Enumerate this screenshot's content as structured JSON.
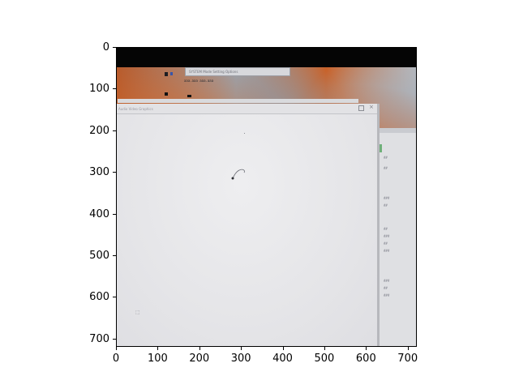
{
  "figure": {
    "type": "image",
    "x_ticks": [
      "0",
      "100",
      "200",
      "300",
      "400",
      "500",
      "600",
      "700"
    ],
    "y_ticks": [
      "0",
      "100",
      "200",
      "300",
      "400",
      "500",
      "600",
      "700"
    ],
    "x_range": [
      0,
      720
    ],
    "y_range": [
      720,
      0
    ]
  },
  "photo": {
    "top_window_menu": "SYSTEM  Mode  Setting  Options",
    "top_window_sub": "aaa.aaa   aaa.aaa",
    "main_window_title": "Audio Video Graphics",
    "colors": {
      "letterbox": "#050505",
      "wallpaper_orange": "#c8622a",
      "wallpaper_grey": "#9aa3ad",
      "window_face": "#e4e4e7",
      "window_border": "#b5b6bb"
    },
    "right_panel_lines": [
      "##",
      "##",
      "###",
      "##",
      "##",
      "###",
      "##",
      "###",
      "###",
      "##",
      "###"
    ]
  }
}
